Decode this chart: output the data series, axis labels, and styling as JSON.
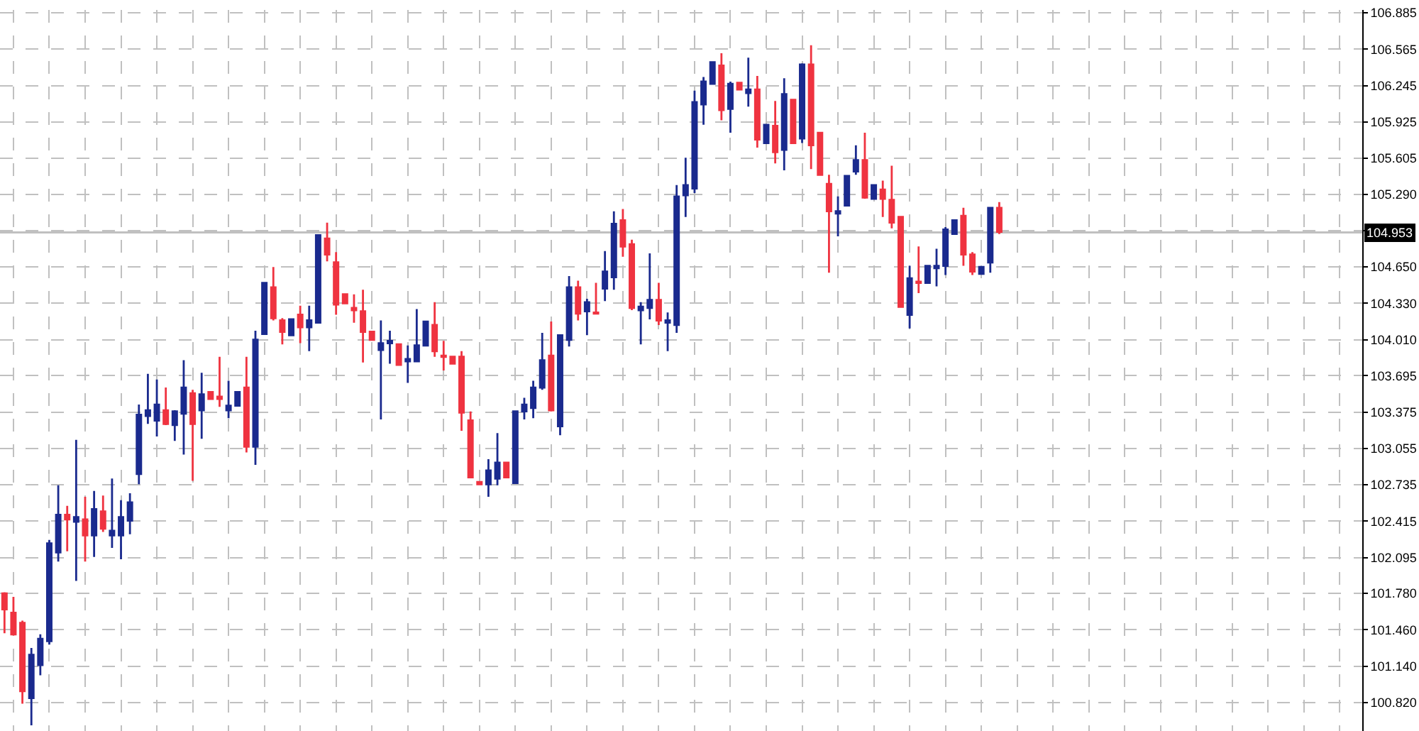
{
  "chart_data": {
    "type": "candlestick",
    "categories": [
      null,
      null,
      null,
      null,
      null,
      null,
      null,
      null,
      null,
      null,
      null,
      null,
      null,
      null,
      null,
      null,
      null,
      null,
      null,
      null,
      null,
      null,
      null,
      null,
      null,
      null,
      null,
      null,
      null,
      null,
      null,
      null,
      null,
      null,
      null,
      null,
      null,
      null,
      null,
      null,
      null,
      null,
      null,
      null,
      null,
      null,
      null,
      null,
      null,
      null,
      null,
      null,
      null,
      null,
      null,
      null,
      null,
      null,
      null,
      null,
      null,
      null,
      null,
      null,
      null,
      null,
      null,
      null,
      null,
      null,
      null,
      null,
      null,
      null,
      null,
      null,
      null,
      null,
      null,
      null,
      null,
      null,
      null,
      null,
      null,
      null,
      null,
      null,
      null,
      null,
      null,
      null,
      null,
      null,
      null,
      null,
      null,
      null,
      null,
      null,
      null,
      null,
      null,
      null,
      null,
      null,
      null,
      null,
      null,
      null,
      null,
      null,
      null,
      null,
      null,
      null,
      null,
      null,
      null,
      null,
      null,
      null,
      null,
      null,
      null,
      null,
      null,
      null,
      null,
      null,
      null,
      null,
      null,
      null,
      null,
      null,
      null,
      null,
      null,
      null,
      null,
      null,
      null,
      null,
      null,
      null,
      null,
      null,
      null,
      null,
      null,
      null
    ],
    "ohlc": [
      [
        101.78,
        101.79,
        101.43,
        101.64
      ],
      [
        101.61,
        101.75,
        101.41,
        101.42
      ],
      [
        101.52,
        101.54,
        100.81,
        100.92
      ],
      [
        100.86,
        101.3,
        100.62,
        101.24
      ],
      [
        101.15,
        101.42,
        101.06,
        101.38
      ],
      [
        101.36,
        102.25,
        101.33,
        102.22
      ],
      [
        102.14,
        102.73,
        102.06,
        102.47
      ],
      [
        102.47,
        102.55,
        102.15,
        102.43
      ],
      [
        102.41,
        103.13,
        101.89,
        102.45
      ],
      [
        102.43,
        102.63,
        102.06,
        102.29
      ],
      [
        102.29,
        102.68,
        102.1,
        102.52
      ],
      [
        102.5,
        102.64,
        102.32,
        102.35
      ],
      [
        102.29,
        102.79,
        102.18,
        102.33
      ],
      [
        102.29,
        102.6,
        102.08,
        102.45
      ],
      [
        102.42,
        102.66,
        102.3,
        102.58
      ],
      [
        102.83,
        103.44,
        102.74,
        103.35
      ],
      [
        103.34,
        103.71,
        103.27,
        103.39
      ],
      [
        103.3,
        103.66,
        103.16,
        103.44
      ],
      [
        103.39,
        103.59,
        103.26,
        103.27
      ],
      [
        103.26,
        103.39,
        103.12,
        103.38
      ],
      [
        103.36,
        103.83,
        103.0,
        103.59
      ],
      [
        103.54,
        103.57,
        102.77,
        103.27
      ],
      [
        103.39,
        103.72,
        103.14,
        103.53
      ],
      [
        103.55,
        103.55,
        103.49,
        103.49
      ],
      [
        103.51,
        103.86,
        103.42,
        103.49
      ],
      [
        103.39,
        103.65,
        103.32,
        103.43
      ],
      [
        103.43,
        103.55,
        103.43,
        103.55
      ],
      [
        103.59,
        103.86,
        103.02,
        103.07
      ],
      [
        103.07,
        104.09,
        102.91,
        104.01
      ],
      [
        104.06,
        104.51,
        104.06,
        104.51
      ],
      [
        104.47,
        104.65,
        104.18,
        104.2
      ],
      [
        104.18,
        104.2,
        103.97,
        104.08
      ],
      [
        104.05,
        104.19,
        104.05,
        104.19
      ],
      [
        104.23,
        104.31,
        103.98,
        104.12
      ],
      [
        104.12,
        104.31,
        103.91,
        104.18
      ],
      [
        104.16,
        104.93,
        104.16,
        104.93
      ],
      [
        104.9,
        105.04,
        104.7,
        104.76
      ],
      [
        104.69,
        104.78,
        104.23,
        104.32
      ],
      [
        104.41,
        104.41,
        104.33,
        104.33
      ],
      [
        104.29,
        104.41,
        104.16,
        104.27
      ],
      [
        104.26,
        104.45,
        103.81,
        104.08
      ],
      [
        104.08,
        104.08,
        104.01,
        104.01
      ],
      [
        103.92,
        104.18,
        103.31,
        103.98
      ],
      [
        103.98,
        104.09,
        103.8,
        104.0
      ],
      [
        103.97,
        103.97,
        103.79,
        103.79
      ],
      [
        103.82,
        103.96,
        103.63,
        103.84
      ],
      [
        103.82,
        104.28,
        103.82,
        103.96
      ],
      [
        103.96,
        104.17,
        103.96,
        104.17
      ],
      [
        104.14,
        104.34,
        103.86,
        103.91
      ],
      [
        103.87,
        104.0,
        103.74,
        103.86
      ],
      [
        103.86,
        103.86,
        103.8,
        103.8
      ],
      [
        103.86,
        103.91,
        103.21,
        103.37
      ],
      [
        103.3,
        103.38,
        102.8,
        102.8
      ],
      [
        102.76,
        102.76,
        102.74,
        102.74
      ],
      [
        102.74,
        102.96,
        102.63,
        102.86
      ],
      [
        102.79,
        103.19,
        102.73,
        102.93
      ],
      [
        102.93,
        102.93,
        102.8,
        102.8
      ],
      [
        102.75,
        103.38,
        102.75,
        103.38
      ],
      [
        103.38,
        103.5,
        103.31,
        103.44
      ],
      [
        103.41,
        103.65,
        103.32,
        103.59
      ],
      [
        103.59,
        104.07,
        103.57,
        103.83
      ],
      [
        103.87,
        104.17,
        103.38,
        103.39
      ],
      [
        103.25,
        104.05,
        103.17,
        104.05
      ],
      [
        104.01,
        104.57,
        103.95,
        104.47
      ],
      [
        104.47,
        104.53,
        104.18,
        104.24
      ],
      [
        104.26,
        104.37,
        104.05,
        104.34
      ],
      [
        104.25,
        104.51,
        104.24,
        104.24
      ],
      [
        104.46,
        104.79,
        104.35,
        104.61
      ],
      [
        104.56,
        105.14,
        104.45,
        105.03
      ],
      [
        105.06,
        105.16,
        104.74,
        104.83
      ],
      [
        104.85,
        104.89,
        104.27,
        104.29
      ],
      [
        104.27,
        104.34,
        103.97,
        104.3
      ],
      [
        104.29,
        104.77,
        104.19,
        104.36
      ],
      [
        104.36,
        104.51,
        104.14,
        104.18
      ],
      [
        104.16,
        104.25,
        103.91,
        104.18
      ],
      [
        104.14,
        105.37,
        104.07,
        105.27
      ],
      [
        105.28,
        105.61,
        105.09,
        105.37
      ],
      [
        105.34,
        106.2,
        105.3,
        106.1
      ],
      [
        106.08,
        106.32,
        105.9,
        106.28
      ],
      [
        106.26,
        106.45,
        106.26,
        106.45
      ],
      [
        106.42,
        106.53,
        105.94,
        106.03
      ],
      [
        106.04,
        106.28,
        105.83,
        106.26
      ],
      [
        106.27,
        106.27,
        106.21,
        106.21
      ],
      [
        106.18,
        106.49,
        106.06,
        106.21
      ],
      [
        106.21,
        106.33,
        105.7,
        105.77
      ],
      [
        105.74,
        105.9,
        105.74,
        105.9
      ],
      [
        105.89,
        106.11,
        105.56,
        105.66
      ],
      [
        105.68,
        106.31,
        105.5,
        106.17
      ],
      [
        106.12,
        106.12,
        105.74,
        105.74
      ],
      [
        105.78,
        106.44,
        105.74,
        106.43
      ],
      [
        106.43,
        106.6,
        105.51,
        105.72
      ],
      [
        105.83,
        105.83,
        105.46,
        105.46
      ],
      [
        105.38,
        105.46,
        104.6,
        105.14
      ],
      [
        105.12,
        105.27,
        104.92,
        105.14
      ],
      [
        105.19,
        105.45,
        105.19,
        105.45
      ],
      [
        105.49,
        105.72,
        105.46,
        105.59
      ],
      [
        105.59,
        105.83,
        105.25,
        105.26
      ],
      [
        105.25,
        105.37,
        105.25,
        105.37
      ],
      [
        105.33,
        105.41,
        105.09,
        105.25
      ],
      [
        105.24,
        105.54,
        104.99,
        105.04
      ],
      [
        105.09,
        105.09,
        104.3,
        104.3
      ],
      [
        104.23,
        104.66,
        104.11,
        104.55
      ],
      [
        104.52,
        104.83,
        104.42,
        104.51
      ],
      [
        104.51,
        104.66,
        104.51,
        104.66
      ],
      [
        104.64,
        104.81,
        104.48,
        104.66
      ],
      [
        104.66,
        105.0,
        104.58,
        104.98
      ],
      [
        104.94,
        105.06,
        104.94,
        105.06
      ],
      [
        105.1,
        105.17,
        104.66,
        104.76
      ],
      [
        104.76,
        104.78,
        104.58,
        104.61
      ],
      [
        104.59,
        104.65,
        104.59,
        104.65
      ],
      [
        104.69,
        105.17,
        104.6,
        105.17
      ],
      [
        105.17,
        105.22,
        104.94,
        104.96
      ],
      null,
      null,
      null,
      null,
      null,
      null,
      null,
      null,
      null,
      null,
      null,
      null,
      null,
      null,
      null,
      null,
      null,
      null,
      null,
      null,
      null,
      null,
      null,
      null,
      null,
      null,
      null,
      null,
      null,
      null,
      null,
      null,
      null,
      null,
      null,
      null,
      null,
      null,
      null,
      null
    ],
    "colors": [
      "#ef3340",
      "#ef3340",
      "#ef3340",
      "#1a2a8e",
      "#1a2a8e",
      "#1a2a8e",
      "#1a2a8e",
      "#ef3340",
      "#1a2a8e",
      "#ef3340",
      "#1a2a8e",
      "#ef3340",
      "#1a2a8e",
      "#1a2a8e",
      "#1a2a8e",
      "#1a2a8e",
      "#1a2a8e",
      "#1a2a8e",
      "#ef3340",
      "#1a2a8e",
      "#1a2a8e",
      "#ef3340",
      "#1a2a8e",
      "#ef3340",
      "#ef3340",
      "#1a2a8e",
      "#1a2a8e",
      "#ef3340",
      "#1a2a8e",
      "#1a2a8e",
      "#ef3340",
      "#ef3340",
      "#1a2a8e",
      "#ef3340",
      "#1a2a8e",
      "#1a2a8e",
      "#ef3340",
      "#ef3340",
      "#ef3340",
      "#ef3340",
      "#ef3340",
      "#ef3340",
      "#1a2a8e",
      "#1a2a8e",
      "#ef3340",
      "#1a2a8e",
      "#1a2a8e",
      "#1a2a8e",
      "#ef3340",
      "#ef3340",
      "#ef3340",
      "#ef3340",
      "#ef3340",
      "#ef3340",
      "#1a2a8e",
      "#1a2a8e",
      "#ef3340",
      "#1a2a8e",
      "#1a2a8e",
      "#1a2a8e",
      "#1a2a8e",
      "#ef3340",
      "#1a2a8e",
      "#1a2a8e",
      "#ef3340",
      "#1a2a8e",
      "#ef3340",
      "#1a2a8e",
      "#1a2a8e",
      "#ef3340",
      "#ef3340",
      "#1a2a8e",
      "#1a2a8e",
      "#ef3340",
      "#1a2a8e",
      "#1a2a8e",
      "#1a2a8e",
      "#1a2a8e",
      "#1a2a8e",
      "#1a2a8e",
      "#ef3340",
      "#1a2a8e",
      "#ef3340",
      "#1a2a8e",
      "#ef3340",
      "#1a2a8e",
      "#ef3340",
      "#1a2a8e",
      "#ef3340",
      "#1a2a8e",
      "#ef3340",
      "#ef3340",
      "#ef3340",
      "#1a2a8e",
      "#1a2a8e",
      "#1a2a8e",
      "#ef3340",
      "#1a2a8e",
      "#ef3340",
      "#ef3340",
      "#ef3340",
      "#1a2a8e",
      "#ef3340",
      "#1a2a8e",
      "#1a2a8e",
      "#1a2a8e",
      "#1a2a8e",
      "#ef3340",
      "#ef3340",
      "#1a2a8e",
      "#1a2a8e",
      "#ef3340",
      null,
      null,
      null,
      null,
      null,
      null,
      null,
      null,
      null,
      null,
      null,
      null,
      null,
      null,
      null,
      null,
      null,
      null,
      null,
      null,
      null,
      null,
      null,
      null,
      null,
      null,
      null,
      null,
      null,
      null,
      null,
      null,
      null,
      null,
      null,
      null,
      null,
      null,
      null,
      null
    ],
    "ylim": [
      100.57,
      106.91
    ],
    "yticks": [
      106.885,
      106.565,
      106.245,
      105.925,
      105.605,
      {
        "value": 105.29,
        "label": "105.290"
      },
      {
        "value": 104.97,
        "label": null
      },
      {
        "value": 104.65,
        "label": "104.650"
      },
      {
        "value": 104.33,
        "label": "104.330"
      },
      {
        "value": 104.01,
        "label": "104.010"
      },
      103.695,
      103.375,
      103.055,
      102.735,
      102.415,
      102.095,
      {
        "value": 101.78,
        "label": "101.780"
      },
      {
        "value": 101.46,
        "label": "101.460"
      },
      {
        "value": 101.14,
        "label": "101.140"
      },
      {
        "value": 100.82,
        "label": "100.820"
      }
    ],
    "ref_lines": [
      {
        "axis": "y",
        "value": 104.953,
        "label": "104.953",
        "color": "#c0c0c0"
      }
    ],
    "grid": true,
    "tick_labels": "y"
  }
}
